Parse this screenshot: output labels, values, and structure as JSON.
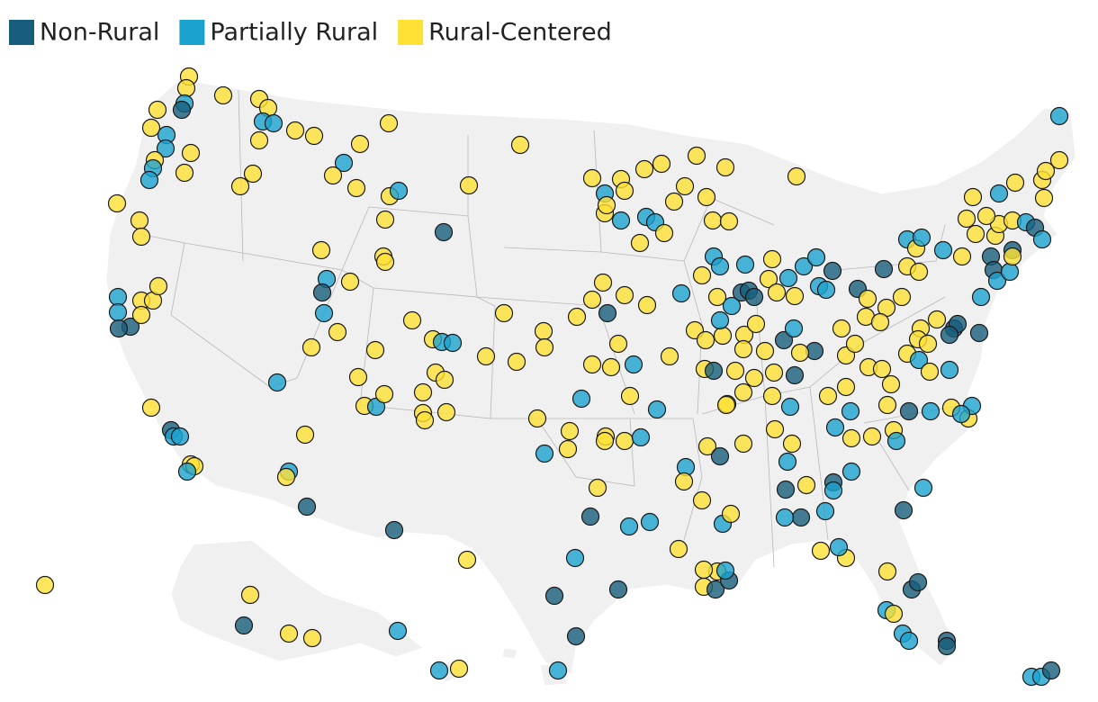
{
  "legend": {
    "items": [
      {
        "label": "Non-Rural",
        "color": "#185e7c"
      },
      {
        "label": "Partially Rural",
        "color": "#1ba3d0"
      },
      {
        "label": "Rural-Centered",
        "color": "#ffe135"
      }
    ]
  }
}
